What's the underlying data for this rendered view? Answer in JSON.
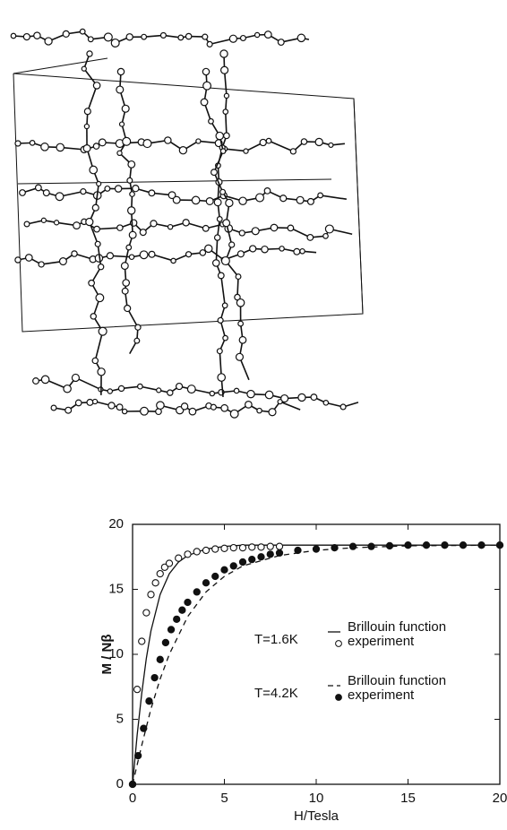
{
  "chart_data": {
    "type": "scatter",
    "xlabel": "H/Tesla",
    "ylabel": "M / Nβ",
    "xlim": [
      0,
      20
    ],
    "xticks": [
      0,
      5,
      10,
      15,
      20
    ],
    "ylim": [
      0,
      20
    ],
    "yticks": [
      0,
      5,
      10,
      15,
      20
    ],
    "series": [
      {
        "name": "Brillouin function",
        "temperature": "T=1.6K",
        "mode": "solid-line",
        "color": "#111111",
        "x": [
          0,
          0.25,
          0.5,
          0.75,
          1,
          1.5,
          2,
          2.5,
          3,
          4,
          5,
          6,
          8,
          10,
          15,
          20
        ],
        "values": [
          0,
          3.8,
          7,
          9.7,
          11.8,
          14.6,
          16.2,
          17.1,
          17.6,
          18.1,
          18.3,
          18.4,
          18.4,
          18.4,
          18.4,
          18.4
        ]
      },
      {
        "name": "experiment",
        "temperature": "T=1.6K",
        "mode": "open-marker",
        "color": "#111111",
        "x": [
          0,
          0.25,
          0.5,
          0.75,
          1,
          1.25,
          1.5,
          1.75,
          2,
          2.5,
          3,
          3.5,
          4,
          4.5,
          5,
          5.5,
          6,
          6.5,
          7,
          7.5,
          8
        ],
        "values": [
          0,
          7.3,
          11,
          13.2,
          14.6,
          15.5,
          16.2,
          16.7,
          17,
          17.4,
          17.7,
          17.9,
          18,
          18.1,
          18.15,
          18.2,
          18.2,
          18.25,
          18.25,
          18.3,
          18.3
        ]
      },
      {
        "name": "Brillouin function",
        "temperature": "T=4.2K",
        "mode": "dashed-line",
        "color": "#111111",
        "x": [
          0,
          0.5,
          1,
          1.5,
          2,
          3,
          4,
          5,
          6,
          8,
          10,
          12,
          15,
          20
        ],
        "values": [
          0,
          3,
          5.8,
          8.1,
          10,
          12.9,
          14.8,
          16,
          16.8,
          17.6,
          18,
          18.2,
          18.35,
          18.4
        ]
      },
      {
        "name": "experiment",
        "temperature": "T=4.2K",
        "mode": "filled-marker",
        "color": "#111111",
        "x": [
          0,
          0.3,
          0.6,
          0.9,
          1.2,
          1.5,
          1.8,
          2.1,
          2.4,
          2.7,
          3,
          3.5,
          4,
          4.5,
          5,
          5.5,
          6,
          6.5,
          7,
          7.5,
          8,
          9,
          10,
          11,
          12,
          13,
          14,
          15,
          16,
          17,
          18,
          19,
          20
        ],
        "values": [
          0,
          2.2,
          4.3,
          6.4,
          8.2,
          9.6,
          10.9,
          11.9,
          12.7,
          13.4,
          14,
          14.8,
          15.5,
          16,
          16.5,
          16.8,
          17.1,
          17.3,
          17.5,
          17.7,
          17.8,
          18,
          18.1,
          18.2,
          18.3,
          18.3,
          18.35,
          18.4,
          18.4,
          18.4,
          18.4,
          18.4,
          18.4
        ]
      }
    ]
  }
}
